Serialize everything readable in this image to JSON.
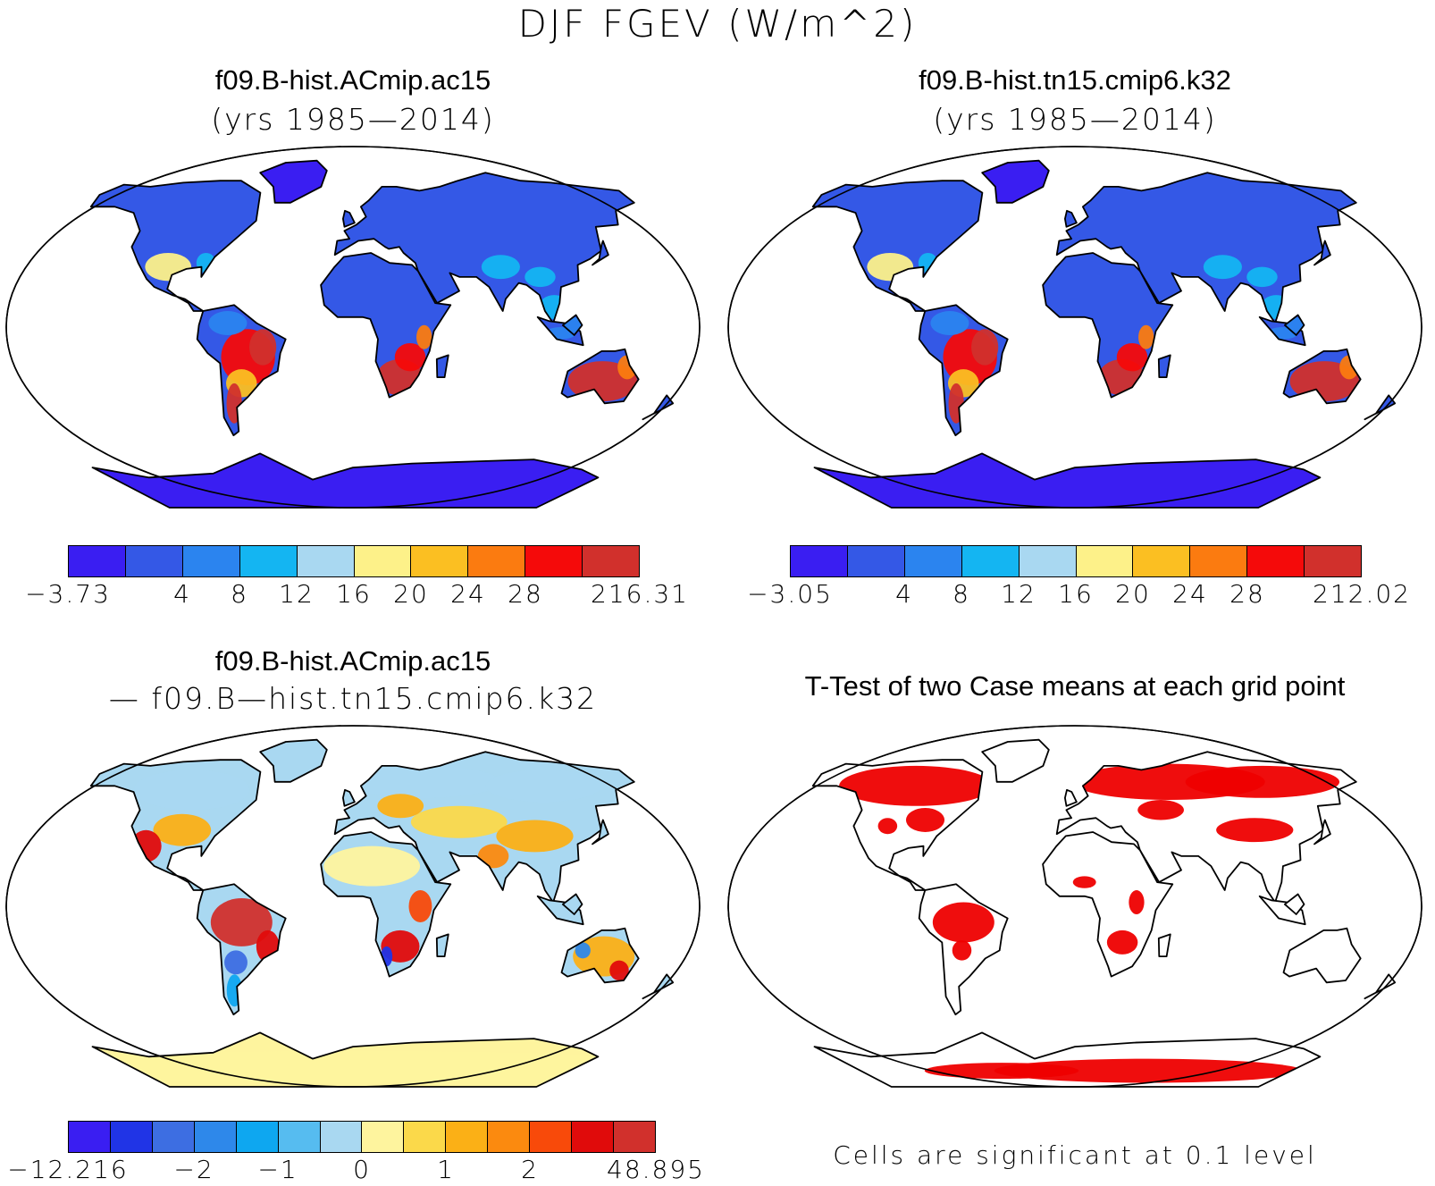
{
  "title": "DJF FGEV (W/m^2)",
  "colors": {
    "sequential": [
      "#3a1ef2",
      "#3458e6",
      "#2b84ef",
      "#14b5f2",
      "#a9d8f1",
      "#fdf189",
      "#fbbf22",
      "#fb7b10",
      "#f50a0a",
      "#d1302c"
    ],
    "difference": [
      "#3a1ef2",
      "#2034e6",
      "#3d6ee2",
      "#2e88ea",
      "#0ea7f0",
      "#56bcf0",
      "#a9d8f1",
      "#fef49e",
      "#fbd94a",
      "#fbb016",
      "#fb8a0f",
      "#f84a0a",
      "#e00b0b",
      "#d1302c"
    ],
    "ttest": "#ee0000"
  },
  "panels": [
    {
      "id": "case1",
      "title": "f09.B-hist.ACmip.ac15",
      "subtitle": "(yrs 1985—2014)",
      "palette": "sequential",
      "colorbar_labels": [
        {
          "text": "−3.73",
          "index": 0
        },
        {
          "text": "4",
          "index": 2
        },
        {
          "text": "8",
          "index": 3
        },
        {
          "text": "12",
          "index": 4
        },
        {
          "text": "16",
          "index": 5
        },
        {
          "text": "20",
          "index": 6
        },
        {
          "text": "24",
          "index": 7
        },
        {
          "text": "28",
          "index": 8
        },
        {
          "text": "216.31",
          "index": 10
        }
      ]
    },
    {
      "id": "case2",
      "title": "f09.B-hist.tn15.cmip6.k32",
      "subtitle": "(yrs 1985—2014)",
      "palette": "sequential",
      "colorbar_labels": [
        {
          "text": "−3.05",
          "index": 0
        },
        {
          "text": "4",
          "index": 2
        },
        {
          "text": "8",
          "index": 3
        },
        {
          "text": "12",
          "index": 4
        },
        {
          "text": "16",
          "index": 5
        },
        {
          "text": "20",
          "index": 6
        },
        {
          "text": "24",
          "index": 7
        },
        {
          "text": "28",
          "index": 8
        },
        {
          "text": "212.02",
          "index": 10
        }
      ]
    },
    {
      "id": "diff",
      "title": "f09.B-hist.ACmip.ac15",
      "subtitle": "— f09.B—hist.tn15.cmip6.k32",
      "palette": "difference",
      "colorbar_labels": [
        {
          "text": "−12.216",
          "index": 0
        },
        {
          "text": "−2",
          "index": 3
        },
        {
          "text": "−1",
          "index": 5
        },
        {
          "text": "0",
          "index": 7
        },
        {
          "text": "1",
          "index": 9
        },
        {
          "text": "2",
          "index": 11
        },
        {
          "text": "48.895",
          "index": 14
        }
      ]
    },
    {
      "id": "ttest",
      "title": "T-Test of two Case means at each grid point",
      "note": "Cells are significant at 0.1 level"
    }
  ]
}
